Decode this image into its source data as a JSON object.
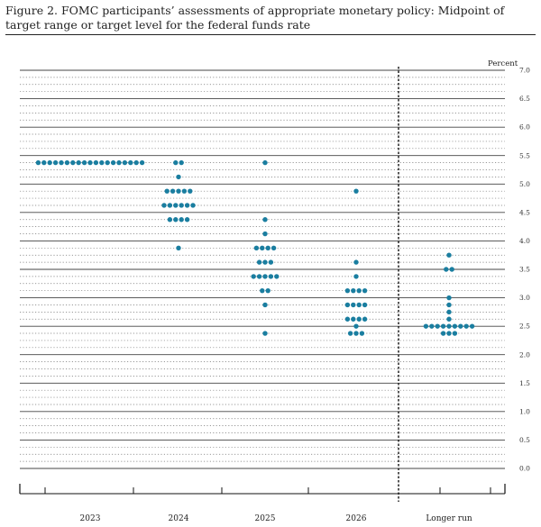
{
  "figure": {
    "title": "Figure 2.  FOMC participants’ assessments of appropriate monetary policy:  Midpoint of target range or target level for the federal funds rate"
  },
  "chart_data": {
    "type": "scatter",
    "subtype": "dot-plot",
    "title": "Figure 2.  FOMC participants’ assessments of appropriate monetary policy:  Midpoint of target range or target level for the federal funds rate",
    "unit_label": "Percent",
    "ylim": [
      0,
      7.0
    ],
    "yticks": [
      "0.0",
      "0.5",
      "1.0",
      "1.5",
      "2.0",
      "2.5",
      "3.0",
      "3.5",
      "4.0",
      "4.5",
      "5.0",
      "5.5",
      "6.0",
      "6.5",
      "7.0"
    ],
    "categories": [
      "2023",
      "2024",
      "2025",
      "2026",
      "Longer run"
    ],
    "dot_color": "#1a7ea0",
    "grid": "dotted every 0.125, solid every 0.5",
    "divider_before": "Longer run",
    "points": [
      {
        "category": "2023",
        "y": 5.375,
        "count": 19
      },
      {
        "category": "2024",
        "y": 5.375,
        "count": 2
      },
      {
        "category": "2024",
        "y": 5.125,
        "count": 1
      },
      {
        "category": "2024",
        "y": 4.875,
        "count": 5
      },
      {
        "category": "2024",
        "y": 4.625,
        "count": 6
      },
      {
        "category": "2024",
        "y": 4.375,
        "count": 4
      },
      {
        "category": "2024",
        "y": 3.875,
        "count": 1
      },
      {
        "category": "2025",
        "y": 5.375,
        "count": 1
      },
      {
        "category": "2025",
        "y": 4.375,
        "count": 1
      },
      {
        "category": "2025",
        "y": 4.125,
        "count": 1
      },
      {
        "category": "2025",
        "y": 3.875,
        "count": 4
      },
      {
        "category": "2025",
        "y": 3.625,
        "count": 3
      },
      {
        "category": "2025",
        "y": 3.375,
        "count": 5
      },
      {
        "category": "2025",
        "y": 3.125,
        "count": 2
      },
      {
        "category": "2025",
        "y": 2.875,
        "count": 1
      },
      {
        "category": "2025",
        "y": 2.375,
        "count": 1
      },
      {
        "category": "2026",
        "y": 4.875,
        "count": 1
      },
      {
        "category": "2026",
        "y": 3.625,
        "count": 1
      },
      {
        "category": "2026",
        "y": 3.375,
        "count": 1
      },
      {
        "category": "2026",
        "y": 3.125,
        "count": 4
      },
      {
        "category": "2026",
        "y": 2.875,
        "count": 4
      },
      {
        "category": "2026",
        "y": 2.625,
        "count": 4
      },
      {
        "category": "2026",
        "y": 2.5,
        "count": 1
      },
      {
        "category": "2026",
        "y": 2.375,
        "count": 3
      },
      {
        "category": "Longer run",
        "y": 3.75,
        "count": 1
      },
      {
        "category": "Longer run",
        "y": 3.5,
        "count": 2
      },
      {
        "category": "Longer run",
        "y": 3.0,
        "count": 1
      },
      {
        "category": "Longer run",
        "y": 2.875,
        "count": 1
      },
      {
        "category": "Longer run",
        "y": 2.75,
        "count": 1
      },
      {
        "category": "Longer run",
        "y": 2.625,
        "count": 1
      },
      {
        "category": "Longer run",
        "y": 2.5,
        "count": 9
      },
      {
        "category": "Longer run",
        "y": 2.375,
        "count": 3
      }
    ]
  }
}
